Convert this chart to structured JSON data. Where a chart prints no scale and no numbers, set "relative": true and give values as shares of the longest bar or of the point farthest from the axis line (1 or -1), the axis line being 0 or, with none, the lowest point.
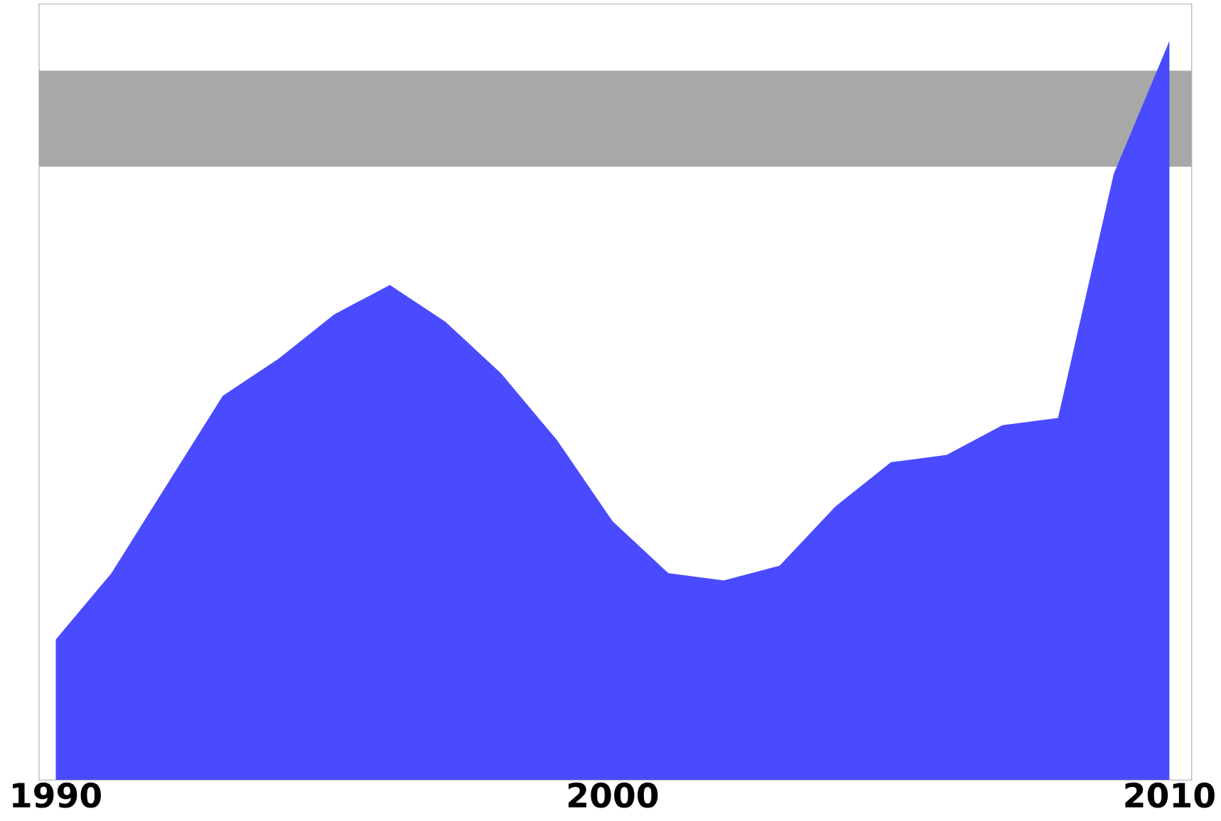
{
  "chart_data": {
    "type": "area",
    "relative": true,
    "color": "#4a4aff",
    "x": [
      1990,
      1991,
      1992,
      1993,
      1994,
      1995,
      1996,
      1997,
      1998,
      1999,
      2000,
      2001,
      2002,
      2003,
      2004,
      2005,
      2006,
      2007,
      2008,
      2009,
      2010
    ],
    "values": [
      0.19,
      0.28,
      0.4,
      0.52,
      0.57,
      0.63,
      0.67,
      0.62,
      0.55,
      0.46,
      0.35,
      0.28,
      0.27,
      0.29,
      0.37,
      0.43,
      0.44,
      0.48,
      0.49,
      0.82,
      1.0
    ],
    "xlim": [
      1989.7,
      2010.4
    ],
    "xticks": [
      1990,
      2000,
      2010
    ],
    "bands": [
      {
        "axis": "y",
        "from": 0.83,
        "to": 0.96,
        "color": "#a8a8a8"
      }
    ],
    "grid": false,
    "legend": false
  }
}
